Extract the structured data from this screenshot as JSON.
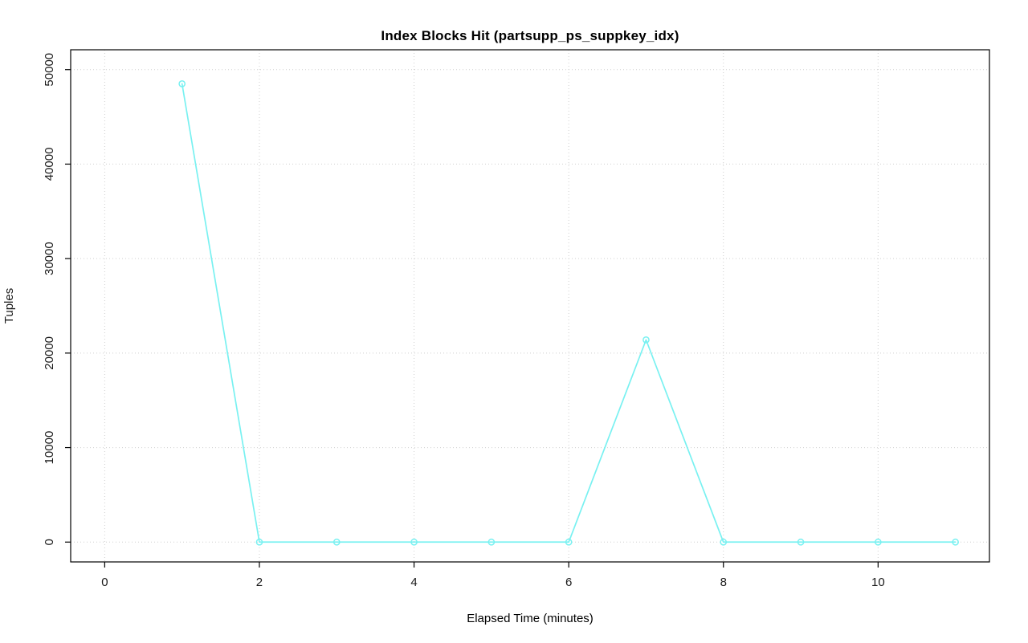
{
  "chart_data": {
    "type": "line",
    "title": "Index Blocks Hit (partsupp_ps_suppkey_idx)",
    "xlabel": "Elapsed Time (minutes)",
    "ylabel": "Tuples",
    "x": [
      1,
      2,
      3,
      4,
      5,
      6,
      7,
      8,
      9,
      10,
      11
    ],
    "values": [
      48500,
      0,
      0,
      0,
      0,
      0,
      21400,
      0,
      0,
      0,
      0
    ],
    "series_name": "Index Blocks Hit",
    "xticks": [
      0,
      2,
      4,
      6,
      8,
      10
    ],
    "yticks": [
      0,
      10000,
      20000,
      30000,
      40000,
      50000
    ],
    "xlim": [
      -0.44,
      11.44
    ],
    "ylim": [
      -2100,
      52100
    ],
    "grid": true,
    "grid_style": "dotted",
    "marker": "open-circle",
    "legend_position": "none",
    "colors": {
      "line": "#79f1f1",
      "grid": "#cfcfcf",
      "axis": "#000000",
      "text": "#1a1a1a",
      "background": "#ffffff"
    }
  }
}
